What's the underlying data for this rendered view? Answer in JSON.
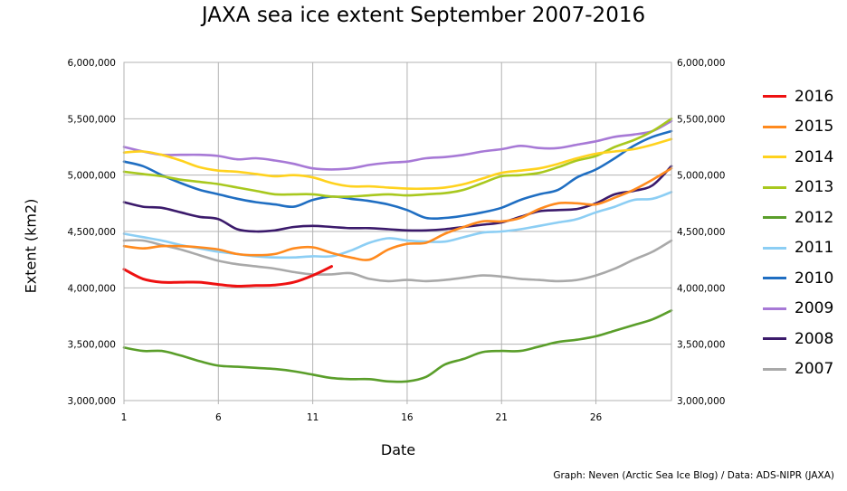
{
  "chart_data": {
    "type": "line",
    "title": "JAXA sea ice extent September 2007-2016",
    "xlabel": "Date",
    "ylabel": "Extent (km2)",
    "credit": "Graph: Neven (Arctic Sea Ice Blog) / Data: ADS-NIPR (JAXA)",
    "xlim": [
      1,
      30
    ],
    "ylim": [
      3000000,
      6000000
    ],
    "x_ticks": [
      {
        "value": 1,
        "label": "1"
      },
      {
        "value": 6,
        "label": "6"
      },
      {
        "value": 11,
        "label": "11"
      },
      {
        "value": 16,
        "label": "16"
      },
      {
        "value": 21,
        "label": "21"
      },
      {
        "value": 26,
        "label": "26"
      }
    ],
    "y_ticks": [
      {
        "value": 3000000,
        "label": "3,000,000"
      },
      {
        "value": 3500000,
        "label": "3,500,000"
      },
      {
        "value": 4000000,
        "label": "4,000,000"
      },
      {
        "value": 4500000,
        "label": "4,500,000"
      },
      {
        "value": 5000000,
        "label": "5,000,000"
      },
      {
        "value": 5500000,
        "label": "5,500,000"
      },
      {
        "value": 6000000,
        "label": "6,000,000"
      }
    ],
    "grid": true,
    "legend_position": "right",
    "series": [
      {
        "name": "2016",
        "color": "#ee1111",
        "x": [
          1,
          2,
          3,
          4,
          5,
          6,
          7,
          8,
          9,
          10,
          11,
          12
        ],
        "values": [
          4165000,
          4080000,
          4050000,
          4050000,
          4050000,
          4030000,
          4015000,
          4020000,
          4025000,
          4050000,
          4110000,
          4190000
        ]
      },
      {
        "name": "2015",
        "color": "#ff8a1e",
        "x": [
          1,
          2,
          3,
          4,
          5,
          6,
          7,
          8,
          9,
          10,
          11,
          12,
          13,
          14,
          15,
          16,
          17,
          18,
          19,
          20,
          21,
          22,
          23,
          24,
          25,
          26,
          27,
          28,
          29,
          30
        ],
        "values": [
          4370000,
          4350000,
          4370000,
          4370000,
          4360000,
          4340000,
          4300000,
          4290000,
          4300000,
          4350000,
          4360000,
          4310000,
          4270000,
          4250000,
          4340000,
          4390000,
          4400000,
          4480000,
          4540000,
          4590000,
          4590000,
          4620000,
          4700000,
          4750000,
          4750000,
          4740000,
          4800000,
          4870000,
          4960000,
          5060000
        ]
      },
      {
        "name": "2014",
        "color": "#ffd21e",
        "x": [
          1,
          2,
          3,
          4,
          5,
          6,
          7,
          8,
          9,
          10,
          11,
          12,
          13,
          14,
          15,
          16,
          17,
          18,
          19,
          20,
          21,
          22,
          23,
          24,
          25,
          26,
          27,
          28,
          29,
          30
        ],
        "values": [
          5200000,
          5210000,
          5180000,
          5130000,
          5070000,
          5040000,
          5030000,
          5010000,
          4990000,
          5000000,
          4980000,
          4930000,
          4900000,
          4900000,
          4890000,
          4880000,
          4880000,
          4890000,
          4920000,
          4970000,
          5020000,
          5040000,
          5060000,
          5100000,
          5150000,
          5190000,
          5210000,
          5230000,
          5270000,
          5320000
        ]
      },
      {
        "name": "2013",
        "color": "#a8c81e",
        "x": [
          1,
          2,
          3,
          4,
          5,
          6,
          7,
          8,
          9,
          10,
          11,
          12,
          13,
          14,
          15,
          16,
          17,
          18,
          19,
          20,
          21,
          22,
          23,
          24,
          25,
          26,
          27,
          28,
          29,
          30
        ],
        "values": [
          5030000,
          5010000,
          4990000,
          4960000,
          4940000,
          4920000,
          4890000,
          4860000,
          4830000,
          4830000,
          4830000,
          4810000,
          4810000,
          4820000,
          4830000,
          4820000,
          4830000,
          4840000,
          4870000,
          4930000,
          4990000,
          5000000,
          5020000,
          5070000,
          5130000,
          5170000,
          5250000,
          5310000,
          5390000,
          5500000
        ]
      },
      {
        "name": "2012",
        "color": "#5a9e2a",
        "x": [
          1,
          2,
          3,
          4,
          5,
          6,
          7,
          8,
          9,
          10,
          11,
          12,
          13,
          14,
          15,
          16,
          17,
          18,
          19,
          20,
          21,
          22,
          23,
          24,
          25,
          26,
          27,
          28,
          29,
          30
        ],
        "values": [
          3470000,
          3440000,
          3440000,
          3400000,
          3350000,
          3310000,
          3300000,
          3290000,
          3280000,
          3260000,
          3230000,
          3200000,
          3190000,
          3190000,
          3170000,
          3170000,
          3210000,
          3320000,
          3370000,
          3430000,
          3440000,
          3440000,
          3480000,
          3520000,
          3540000,
          3570000,
          3620000,
          3670000,
          3720000,
          3800000
        ]
      },
      {
        "name": "2011",
        "color": "#8ccef4",
        "x": [
          1,
          2,
          3,
          4,
          5,
          6,
          7,
          8,
          9,
          10,
          11,
          12,
          13,
          14,
          15,
          16,
          17,
          18,
          19,
          20,
          21,
          22,
          23,
          24,
          25,
          26,
          27,
          28,
          29,
          30
        ],
        "values": [
          4480000,
          4450000,
          4420000,
          4380000,
          4350000,
          4320000,
          4300000,
          4280000,
          4270000,
          4270000,
          4280000,
          4280000,
          4330000,
          4400000,
          4440000,
          4420000,
          4410000,
          4410000,
          4450000,
          4490000,
          4500000,
          4520000,
          4550000,
          4580000,
          4610000,
          4670000,
          4720000,
          4780000,
          4790000,
          4850000
        ]
      },
      {
        "name": "2010",
        "color": "#1f6ec2",
        "x": [
          1,
          2,
          3,
          4,
          5,
          6,
          7,
          8,
          9,
          10,
          11,
          12,
          13,
          14,
          15,
          16,
          17,
          18,
          19,
          20,
          21,
          22,
          23,
          24,
          25,
          26,
          27,
          28,
          29,
          30
        ],
        "values": [
          5120000,
          5080000,
          5000000,
          4930000,
          4870000,
          4830000,
          4790000,
          4760000,
          4740000,
          4720000,
          4780000,
          4810000,
          4790000,
          4770000,
          4740000,
          4690000,
          4620000,
          4620000,
          4640000,
          4670000,
          4710000,
          4780000,
          4830000,
          4870000,
          4980000,
          5050000,
          5150000,
          5260000,
          5340000,
          5390000
        ]
      },
      {
        "name": "2009",
        "color": "#a779d6",
        "x": [
          1,
          2,
          3,
          4,
          5,
          6,
          7,
          8,
          9,
          10,
          11,
          12,
          13,
          14,
          15,
          16,
          17,
          18,
          19,
          20,
          21,
          22,
          23,
          24,
          25,
          26,
          27,
          28,
          29,
          30
        ],
        "values": [
          5250000,
          5210000,
          5180000,
          5180000,
          5180000,
          5170000,
          5140000,
          5150000,
          5130000,
          5100000,
          5060000,
          5050000,
          5060000,
          5090000,
          5110000,
          5120000,
          5150000,
          5160000,
          5180000,
          5210000,
          5230000,
          5260000,
          5240000,
          5240000,
          5270000,
          5300000,
          5340000,
          5360000,
          5390000,
          5480000
        ]
      },
      {
        "name": "2008",
        "color": "#3b1a6b",
        "x": [
          1,
          2,
          3,
          4,
          5,
          6,
          7,
          8,
          9,
          10,
          11,
          12,
          13,
          14,
          15,
          16,
          17,
          18,
          19,
          20,
          21,
          22,
          23,
          24,
          25,
          26,
          27,
          28,
          29,
          30
        ],
        "values": [
          4760000,
          4720000,
          4710000,
          4670000,
          4630000,
          4610000,
          4520000,
          4500000,
          4510000,
          4540000,
          4550000,
          4540000,
          4530000,
          4530000,
          4520000,
          4510000,
          4510000,
          4520000,
          4540000,
          4560000,
          4580000,
          4630000,
          4680000,
          4690000,
          4700000,
          4750000,
          4830000,
          4860000,
          4910000,
          5080000
        ]
      },
      {
        "name": "2007",
        "color": "#a9a9a9",
        "x": [
          1,
          2,
          3,
          4,
          5,
          6,
          7,
          8,
          9,
          10,
          11,
          12,
          13,
          14,
          15,
          16,
          17,
          18,
          19,
          20,
          21,
          22,
          23,
          24,
          25,
          26,
          27,
          28,
          29,
          30
        ],
        "values": [
          4420000,
          4420000,
          4380000,
          4340000,
          4290000,
          4240000,
          4210000,
          4190000,
          4170000,
          4140000,
          4120000,
          4120000,
          4130000,
          4080000,
          4060000,
          4070000,
          4060000,
          4070000,
          4090000,
          4110000,
          4100000,
          4080000,
          4070000,
          4060000,
          4070000,
          4110000,
          4170000,
          4250000,
          4320000,
          4420000
        ]
      }
    ]
  }
}
